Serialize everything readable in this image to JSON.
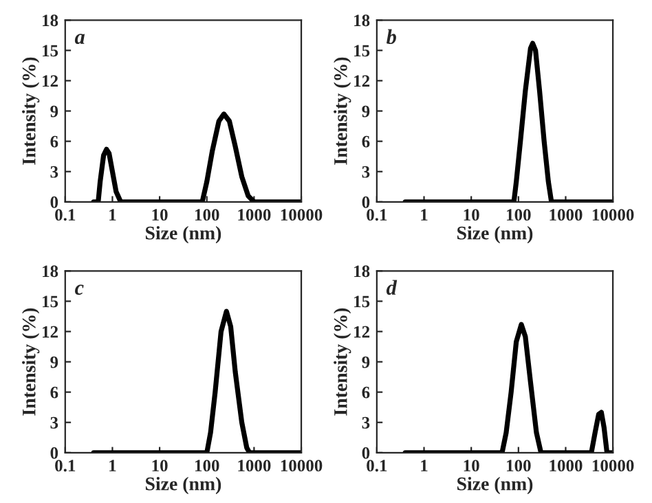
{
  "chart_data": [
    {
      "type": "line",
      "xlabel": "Size (nm)",
      "ylabel": "Intensity (%)",
      "annotations": [
        "a"
      ],
      "log": "x",
      "xlim": [
        0.1,
        10000
      ],
      "ylim": [
        0,
        18
      ],
      "xticks": [
        0.1,
        1,
        10,
        100,
        1000,
        10000
      ],
      "yticks": [
        0,
        3,
        6,
        9,
        12,
        15,
        18
      ],
      "grid": false,
      "series": [
        {
          "color": "#000000",
          "x": [
            0.4,
            0.5,
            0.55,
            0.65,
            0.75,
            0.85,
            1.0,
            1.2,
            1.5,
            10,
            80,
            100,
            130,
            180,
            230,
            300,
            400,
            550,
            750,
            1000,
            10000
          ],
          "values": [
            0,
            0,
            2,
            4.6,
            5.2,
            4.8,
            3,
            1,
            0,
            0,
            0,
            2,
            5,
            8,
            8.7,
            8,
            5.5,
            2.5,
            0.6,
            0,
            0
          ]
        }
      ]
    },
    {
      "type": "line",
      "xlabel": "Size (nm)",
      "ylabel": "Intensity (%)",
      "annotations": [
        "b"
      ],
      "log": "x",
      "xlim": [
        0.1,
        10000
      ],
      "ylim": [
        0,
        18
      ],
      "xticks": [
        0.1,
        1,
        10,
        100,
        1000,
        10000
      ],
      "yticks": [
        0,
        3,
        6,
        9,
        12,
        15,
        18
      ],
      "grid": false,
      "series": [
        {
          "color": "#000000",
          "x": [
            0.4,
            80,
            90,
            110,
            140,
            180,
            200,
            230,
            280,
            350,
            430,
            500,
            10000
          ],
          "values": [
            0,
            0,
            2,
            6,
            11,
            15.2,
            15.7,
            15,
            11,
            6,
            2,
            0,
            0
          ]
        }
      ]
    },
    {
      "type": "line",
      "xlabel": "Size (nm)",
      "ylabel": "Intensity (%)",
      "annotations": [
        "c"
      ],
      "log": "x",
      "xlim": [
        0.1,
        10000
      ],
      "ylim": [
        0,
        18
      ],
      "xticks": [
        0.1,
        1,
        10,
        100,
        1000,
        10000
      ],
      "yticks": [
        0,
        3,
        6,
        9,
        12,
        15,
        18
      ],
      "grid": false,
      "series": [
        {
          "color": "#000000",
          "x": [
            0.4,
            100,
            120,
            150,
            200,
            260,
            320,
            400,
            550,
            700,
            800,
            10000
          ],
          "values": [
            0,
            0,
            2,
            6,
            12,
            14,
            12.5,
            8,
            3,
            0.5,
            0,
            0
          ]
        }
      ]
    },
    {
      "type": "line",
      "xlabel": "Size (nm)",
      "ylabel": "Intensity (%)",
      "annotations": [
        "d"
      ],
      "log": "x",
      "xlim": [
        0.1,
        10000
      ],
      "ylim": [
        0,
        18
      ],
      "xticks": [
        0.1,
        1,
        10,
        100,
        1000,
        10000
      ],
      "yticks": [
        0,
        3,
        6,
        9,
        12,
        15,
        18
      ],
      "grid": false,
      "series": [
        {
          "color": "#000000",
          "x": [
            0.4,
            45,
            55,
            70,
            90,
            115,
            140,
            180,
            240,
            300,
            3500,
            4200,
            5000,
            5700,
            6500,
            7500,
            10000
          ],
          "values": [
            0,
            0,
            2,
            6,
            11,
            12.7,
            11.5,
            7,
            2,
            0,
            0,
            2,
            3.8,
            4,
            2.5,
            0,
            0
          ]
        }
      ]
    }
  ]
}
